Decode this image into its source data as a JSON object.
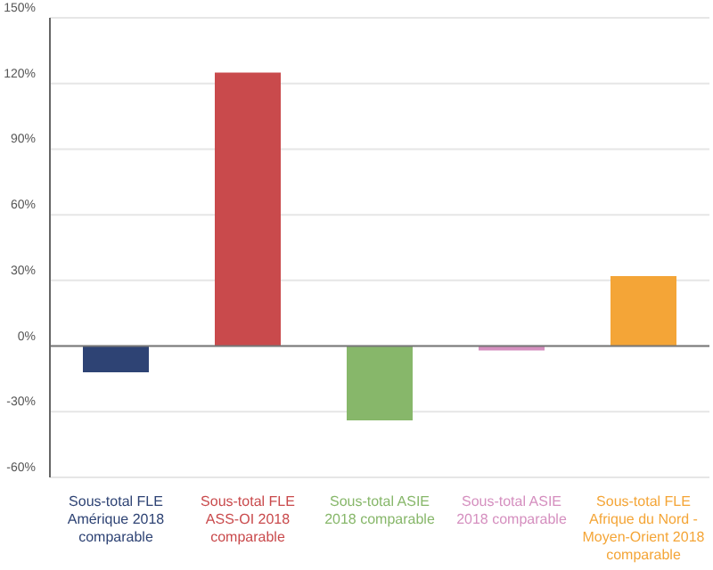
{
  "chart_data": {
    "type": "bar",
    "categories": [
      "Sous-total FLE Amérique 2018 comparable",
      "Sous-total FLE ASS-OI 2018 comparable",
      "Sous-total ASIE 2018 comparable",
      "Sous-total ASIE 2018 comparable",
      "Sous-total FLE Afrique du Nord - Moyen-Orient 2018 comparable"
    ],
    "values": [
      -12,
      125,
      -34,
      -2,
      32
    ],
    "colors": [
      "#2e4374",
      "#c94a4c",
      "#87b76a",
      "#d58fbf",
      "#f4a537"
    ],
    "ylim": [
      -60,
      150
    ],
    "yticks": [
      {
        "value": -60,
        "label": "-60%"
      },
      {
        "value": -30,
        "label": "-30%"
      },
      {
        "value": 0,
        "label": "0%"
      },
      {
        "value": 30,
        "label": "30%"
      },
      {
        "value": 60,
        "label": "60%"
      },
      {
        "value": 90,
        "label": "90%"
      },
      {
        "value": 120,
        "label": "120%"
      },
      {
        "value": 150,
        "label": "150%"
      }
    ],
    "grid": "y"
  }
}
